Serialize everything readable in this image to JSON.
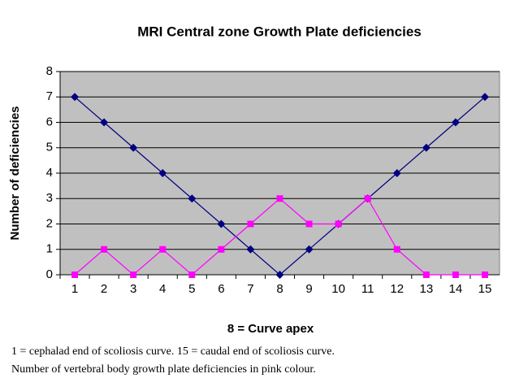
{
  "chart_data": {
    "type": "line",
    "title": "MRI Central zone Growth Plate deficiencies",
    "x_label": "8 = Curve apex",
    "y_label": "Number of deficiencies",
    "notes": [
      "1 = cephalad end of scoliosis curve. 15 = caudal end of scoliosis curve.",
      "Number of vertebral body growth plate deficiencies in pink colour."
    ],
    "categories": [
      "1",
      "2",
      "3",
      "4",
      "5",
      "6",
      "7",
      "8",
      "9",
      "10",
      "11",
      "12",
      "13",
      "14",
      "15"
    ],
    "series": [
      {
        "color": "#000080",
        "marker": "diamond",
        "values": [
          7,
          6,
          5,
          4,
          3,
          2,
          1,
          0,
          1,
          2,
          3,
          4,
          5,
          6,
          7
        ]
      },
      {
        "color": "#ff00ff",
        "marker": "square",
        "values": [
          0,
          1,
          0,
          1,
          0,
          1,
          2,
          3,
          2,
          2,
          3,
          1,
          0,
          0,
          0
        ]
      }
    ],
    "ylim": [
      0,
      8
    ],
    "yticks": [
      0,
      1,
      2,
      3,
      4,
      5,
      6,
      7,
      8
    ],
    "grid": true,
    "plot_background": "#c0c0c0"
  }
}
